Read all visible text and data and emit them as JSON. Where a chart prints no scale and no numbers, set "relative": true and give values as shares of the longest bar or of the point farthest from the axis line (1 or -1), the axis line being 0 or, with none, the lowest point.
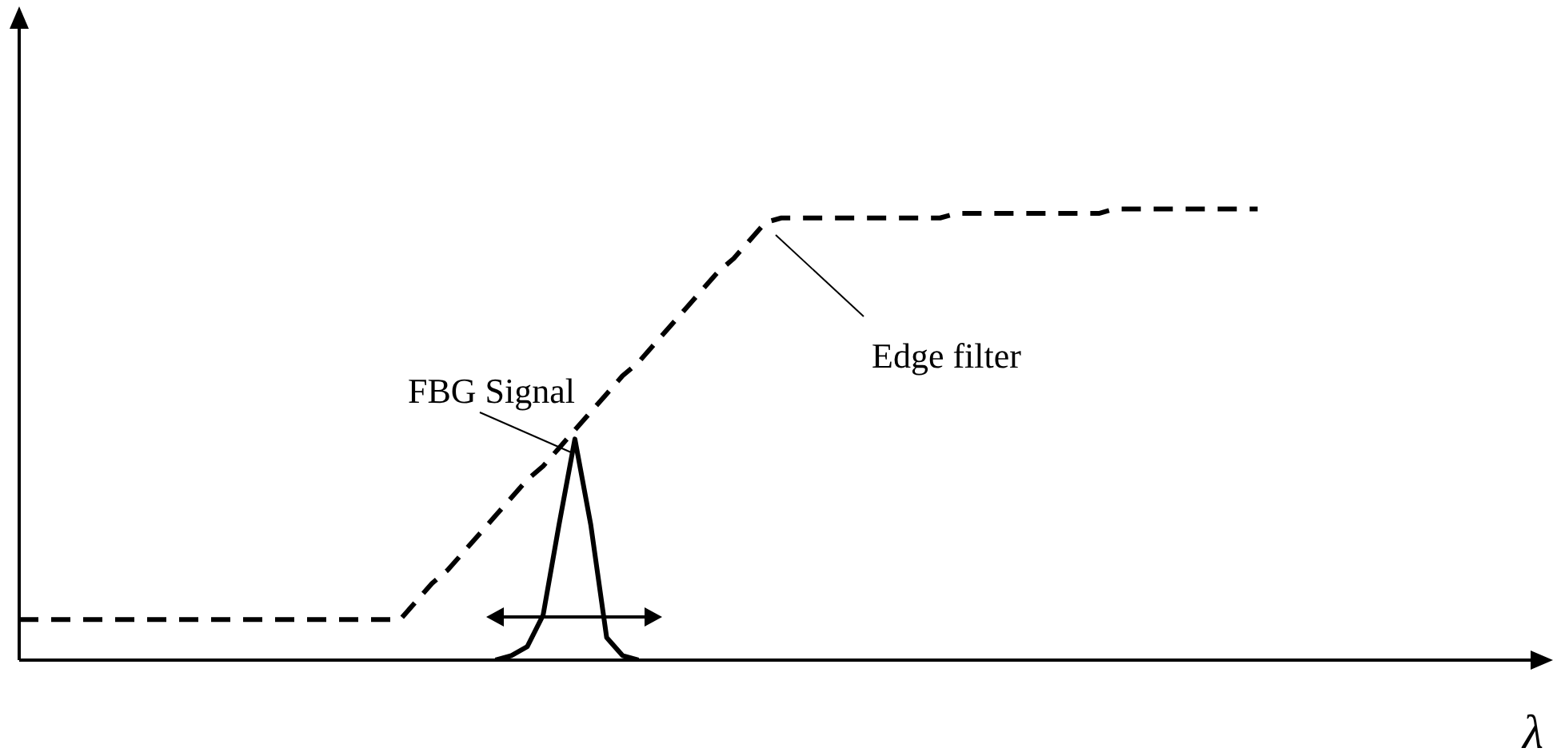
{
  "chart_data": {
    "type": "line",
    "relative": true,
    "xlabel": "λ",
    "tick_labels": false,
    "legend": false,
    "marker": "none",
    "categories": [
      null,
      null,
      null,
      null,
      null,
      null,
      null,
      null,
      null,
      null,
      null,
      null,
      null,
      null,
      null,
      null,
      null,
      null,
      null,
      null,
      null,
      null,
      null,
      null,
      null,
      null,
      null,
      null,
      null,
      null,
      null,
      null,
      null,
      null,
      null,
      null,
      null,
      null,
      null,
      null,
      null,
      null,
      null,
      null,
      null,
      null,
      null,
      null,
      null,
      null,
      null,
      null,
      null,
      null,
      null,
      null,
      null,
      null,
      null,
      null,
      null,
      null,
      null,
      null,
      null,
      null,
      null,
      null,
      null,
      null,
      null,
      null,
      null,
      null,
      null,
      null,
      null,
      null,
      null,
      null,
      null,
      null,
      null,
      null,
      null,
      null,
      null,
      null,
      null,
      null,
      null,
      null,
      null,
      null,
      null,
      null,
      null
    ],
    "series": [
      {
        "color": "#000000",
        "line_style": "dashed",
        "values": [
          0.09,
          0.09,
          0.09,
          0.09,
          0.09,
          0.09,
          0.09,
          0.09,
          0.09,
          0.09,
          0.09,
          0.09,
          0.09,
          0.09,
          0.09,
          0.09,
          0.09,
          0.09,
          0.09,
          0.09,
          0.09,
          0.09,
          0.09,
          0.09,
          0.09,
          0.13,
          0.17,
          0.2,
          0.24,
          0.28,
          0.32,
          0.36,
          0.4,
          0.43,
          0.47,
          0.51,
          0.55,
          0.59,
          0.63,
          0.66,
          0.7,
          0.74,
          0.78,
          0.82,
          0.86,
          0.89,
          0.93,
          0.97,
          0.98,
          0.98,
          0.98,
          0.98,
          0.98,
          0.98,
          0.98,
          0.98,
          0.98,
          0.98,
          0.98,
          0.99,
          0.99,
          0.99,
          0.99,
          0.99,
          0.99,
          0.99,
          0.99,
          0.99,
          0.99,
          1,
          1,
          1,
          1,
          1,
          1,
          1,
          1,
          1,
          1,
          null,
          null,
          null,
          null,
          null,
          null,
          null,
          null,
          null,
          null,
          null,
          null,
          null,
          null,
          null,
          null,
          null,
          null
        ]
      },
      {
        "color": "#000000",
        "line_style": "solid",
        "values": [
          null,
          null,
          null,
          null,
          null,
          null,
          null,
          null,
          null,
          null,
          null,
          null,
          null,
          null,
          null,
          null,
          null,
          null,
          null,
          null,
          null,
          null,
          null,
          null,
          null,
          null,
          null,
          null,
          null,
          null,
          0,
          0.01,
          0.03,
          0.1,
          0.3,
          0.49,
          0.3,
          0.05,
          0.01,
          0,
          null,
          null,
          null,
          null,
          null,
          null,
          null,
          null,
          null,
          null,
          null,
          null,
          null,
          null,
          null,
          null,
          null,
          null,
          null,
          null,
          null,
          null,
          null,
          null,
          null,
          null,
          null,
          null,
          null,
          null,
          null,
          null,
          null,
          null,
          null,
          null,
          null,
          null,
          null,
          null,
          null,
          null,
          null,
          null,
          null,
          null,
          null,
          null,
          null,
          null,
          null,
          null,
          null,
          null,
          null,
          null,
          null
        ]
      }
    ],
    "annotations": [
      "FBG Signal",
      "Edge filter"
    ]
  }
}
